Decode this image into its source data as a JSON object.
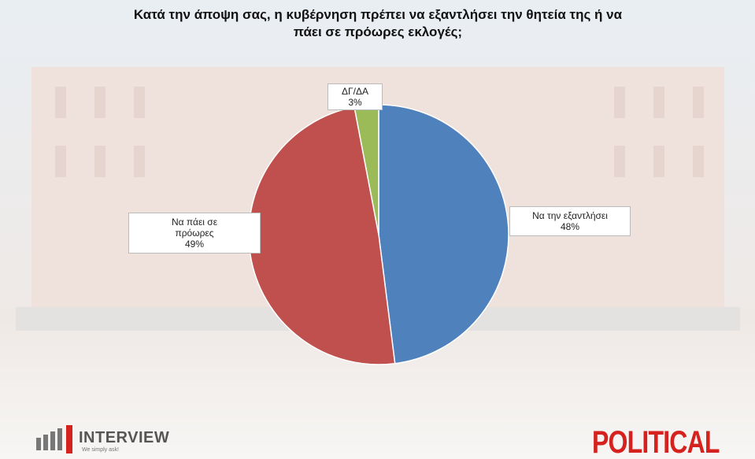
{
  "chart_data": {
    "type": "pie",
    "title": "Κατά την άποψη σας, η κυβέρνηση πρέπει να εξαντλήσει την θητεία της ή να πάει σε πρόωρες εκλογές;",
    "categories": [
      "Να την εξαντλήσει",
      "Να πάει σε πρόωρες",
      "ΔΓ/ΔΑ"
    ],
    "values": [
      48,
      49,
      3
    ],
    "value_labels": [
      "48%",
      "49%",
      "3%"
    ],
    "colors": [
      "#4f81bd",
      "#c0504d",
      "#9bbb59"
    ]
  },
  "logos": {
    "interview": "INTERVIEW",
    "tagline": "We simply ask!",
    "political": "POLITICAL"
  }
}
